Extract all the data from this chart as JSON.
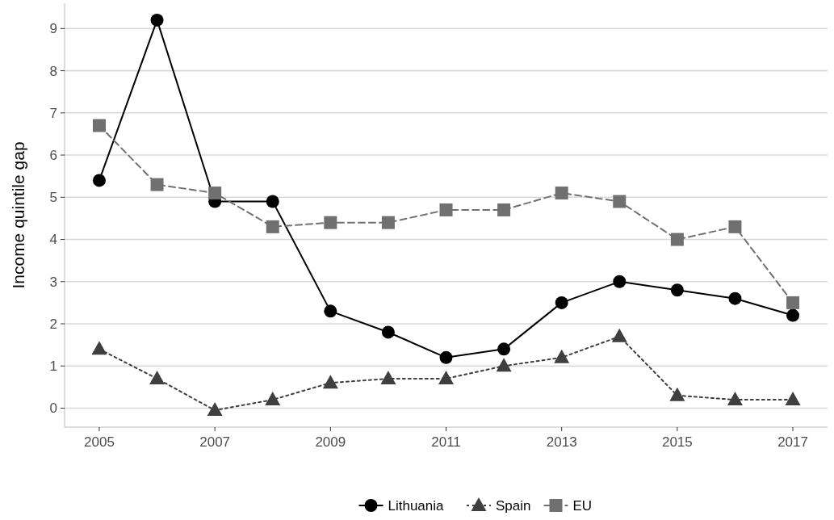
{
  "chart_data": {
    "type": "line",
    "ylabel": "Income quintile gap",
    "x": [
      2005,
      2006,
      2007,
      2008,
      2009,
      2010,
      2011,
      2012,
      2013,
      2014,
      2015,
      2016,
      2017
    ],
    "xlim": [
      2004.4,
      2017.6
    ],
    "xticks": [
      2005,
      2007,
      2009,
      2011,
      2013,
      2015,
      2017
    ],
    "ylim": [
      -0.45,
      9.6
    ],
    "yticks": [
      0,
      1,
      2,
      3,
      4,
      5,
      6,
      7,
      8,
      9
    ],
    "grid": "y",
    "legend": "bottom",
    "series": [
      {
        "name": "Lithuania",
        "color": "#000000",
        "marker": "circle",
        "line_style": "solid",
        "values": [
          5.4,
          9.2,
          4.9,
          4.9,
          2.3,
          1.8,
          1.2,
          1.4,
          2.5,
          3.0,
          2.8,
          2.6,
          2.2
        ]
      },
      {
        "name": "Spain",
        "color": "#3f3f3f",
        "marker": "triangle",
        "line_style": "dotted",
        "values": [
          1.4,
          0.7,
          -0.05,
          0.2,
          0.6,
          0.7,
          0.7,
          1.0,
          1.2,
          1.7,
          0.3,
          0.2,
          0.2
        ]
      },
      {
        "name": "EU",
        "color": "#707070",
        "marker": "square",
        "line_style": "dashed",
        "values": [
          6.7,
          5.3,
          5.1,
          4.3,
          4.4,
          4.4,
          4.7,
          4.7,
          5.1,
          4.9,
          4.0,
          4.3,
          2.5
        ]
      }
    ]
  }
}
